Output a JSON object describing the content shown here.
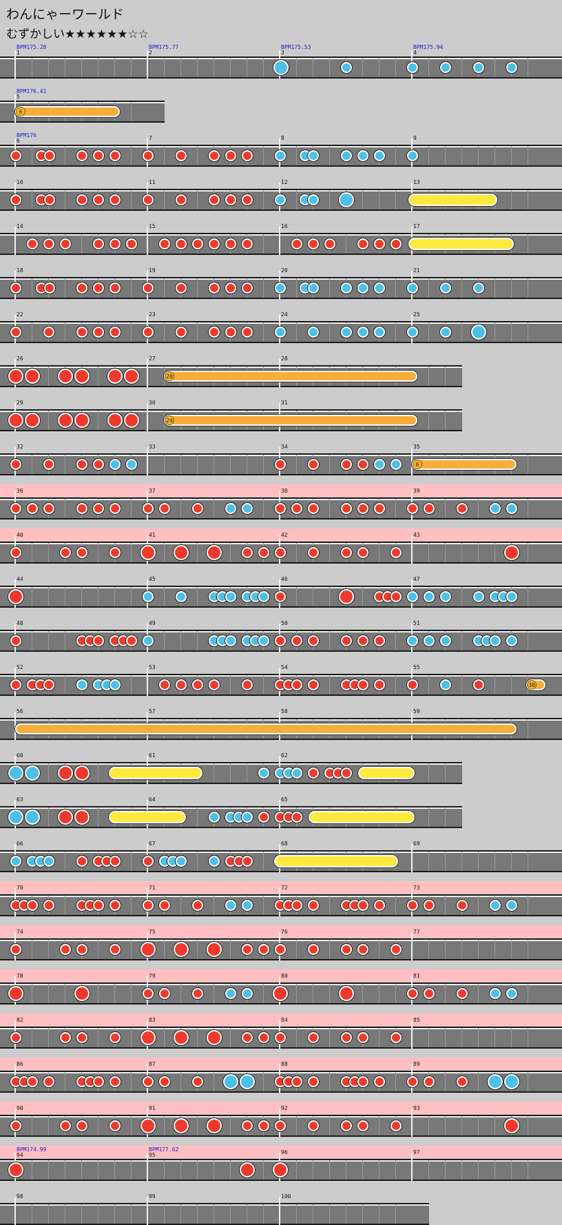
{
  "song": {
    "title": "わんにゃーワールド",
    "course": "むずかしい",
    "stars": "★★★★★★☆☆"
  },
  "colors": {
    "background": "#cccccc",
    "lane": "#787878",
    "gogo": "#ffbfc0",
    "don": "#ee3a2c",
    "ka": "#4cc0e8",
    "drumroll": "#fee93e",
    "balloon": "#f7ad3a",
    "bpm_text": "#1a1ad0"
  },
  "rows": [
    {
      "gogo": false,
      "measures": [
        {
          "n": "1",
          "bpm": "BPM175.28"
        },
        {
          "n": "2",
          "bpm": "BPM175.77"
        },
        {
          "n": "3",
          "bpm": "BPM175.53"
        },
        {
          "n": "4",
          "bpm": "BPM175.94"
        }
      ]
    },
    {
      "gogo": false,
      "measures": [
        {
          "n": "5",
          "bpm": "BPM176.41"
        }
      ]
    },
    {
      "gogo": false,
      "measures": [
        {
          "n": "6",
          "bpm": "BPM176"
        },
        {
          "n": "7"
        },
        {
          "n": "8"
        },
        {
          "n": "9"
        }
      ]
    },
    {
      "gogo": false,
      "measures": [
        {
          "n": "10"
        },
        {
          "n": "11"
        },
        {
          "n": "12"
        },
        {
          "n": "13"
        }
      ]
    },
    {
      "gogo": false,
      "measures": [
        {
          "n": "14"
        },
        {
          "n": "15"
        },
        {
          "n": "16"
        },
        {
          "n": "17"
        }
      ]
    },
    {
      "gogo": false,
      "measures": [
        {
          "n": "18"
        },
        {
          "n": "19"
        },
        {
          "n": "20"
        },
        {
          "n": "21"
        }
      ]
    },
    {
      "gogo": false,
      "measures": [
        {
          "n": "22"
        },
        {
          "n": "23"
        },
        {
          "n": "24"
        },
        {
          "n": "25"
        }
      ]
    },
    {
      "gogo": false,
      "measures": [
        {
          "n": "26"
        },
        {
          "n": "27"
        },
        {
          "n": "28"
        }
      ]
    },
    {
      "gogo": false,
      "measures": [
        {
          "n": "29"
        },
        {
          "n": "30"
        },
        {
          "n": "31"
        }
      ]
    },
    {
      "gogo": false,
      "measures": [
        {
          "n": "32"
        },
        {
          "n": "33"
        },
        {
          "n": "34"
        },
        {
          "n": "35"
        }
      ]
    },
    {
      "gogo": true,
      "measures": [
        {
          "n": "36"
        },
        {
          "n": "37"
        },
        {
          "n": "38"
        },
        {
          "n": "39"
        }
      ]
    },
    {
      "gogo": true,
      "measures": [
        {
          "n": "40"
        },
        {
          "n": "41"
        },
        {
          "n": "42"
        },
        {
          "n": "43"
        }
      ]
    },
    {
      "gogo": false,
      "measures": [
        {
          "n": "44"
        },
        {
          "n": "45"
        },
        {
          "n": "46"
        },
        {
          "n": "47"
        }
      ]
    },
    {
      "gogo": false,
      "measures": [
        {
          "n": "48"
        },
        {
          "n": "49"
        },
        {
          "n": "50"
        },
        {
          "n": "51"
        }
      ]
    },
    {
      "gogo": false,
      "measures": [
        {
          "n": "52"
        },
        {
          "n": "53"
        },
        {
          "n": "54"
        },
        {
          "n": "55"
        }
      ]
    },
    {
      "gogo": false,
      "measures": [
        {
          "n": "56"
        },
        {
          "n": "57"
        },
        {
          "n": "58"
        },
        {
          "n": "59"
        }
      ]
    },
    {
      "gogo": false,
      "measures": [
        {
          "n": "60"
        },
        {
          "n": "61"
        },
        {
          "n": "62"
        }
      ]
    },
    {
      "gogo": false,
      "measures": [
        {
          "n": "63"
        },
        {
          "n": "64"
        },
        {
          "n": "65"
        }
      ]
    },
    {
      "gogo": false,
      "measures": [
        {
          "n": "66"
        },
        {
          "n": "67"
        },
        {
          "n": "68"
        },
        {
          "n": "69"
        }
      ]
    },
    {
      "gogo": true,
      "measures": [
        {
          "n": "70"
        },
        {
          "n": "71"
        },
        {
          "n": "72"
        },
        {
          "n": "73"
        }
      ]
    },
    {
      "gogo": true,
      "measures": [
        {
          "n": "74"
        },
        {
          "n": "75"
        },
        {
          "n": "76"
        },
        {
          "n": "77"
        }
      ]
    },
    {
      "gogo": true,
      "measures": [
        {
          "n": "78"
        },
        {
          "n": "79"
        },
        {
          "n": "80"
        },
        {
          "n": "81"
        }
      ]
    },
    {
      "gogo": true,
      "measures": [
        {
          "n": "82"
        },
        {
          "n": "83"
        },
        {
          "n": "84"
        },
        {
          "n": "85"
        }
      ]
    },
    {
      "gogo": true,
      "measures": [
        {
          "n": "86"
        },
        {
          "n": "87"
        },
        {
          "n": "88"
        },
        {
          "n": "89"
        }
      ]
    },
    {
      "gogo": true,
      "measures": [
        {
          "n": "90"
        },
        {
          "n": "91"
        },
        {
          "n": "92"
        },
        {
          "n": "93"
        }
      ]
    },
    {
      "gogo": true,
      "measures": [
        {
          "n": "94",
          "bpm": "BPM174.99"
        },
        {
          "n": "95",
          "bpm": "BPM177.62"
        },
        {
          "n": "96"
        },
        {
          "n": "97"
        }
      ]
    },
    {
      "gogo": false,
      "measures": [
        {
          "n": "98"
        },
        {
          "n": "99"
        },
        {
          "n": "100"
        }
      ]
    }
  ],
  "balloon_counts": [
    "6",
    "20",
    "24",
    "6",
    "30"
  ]
}
